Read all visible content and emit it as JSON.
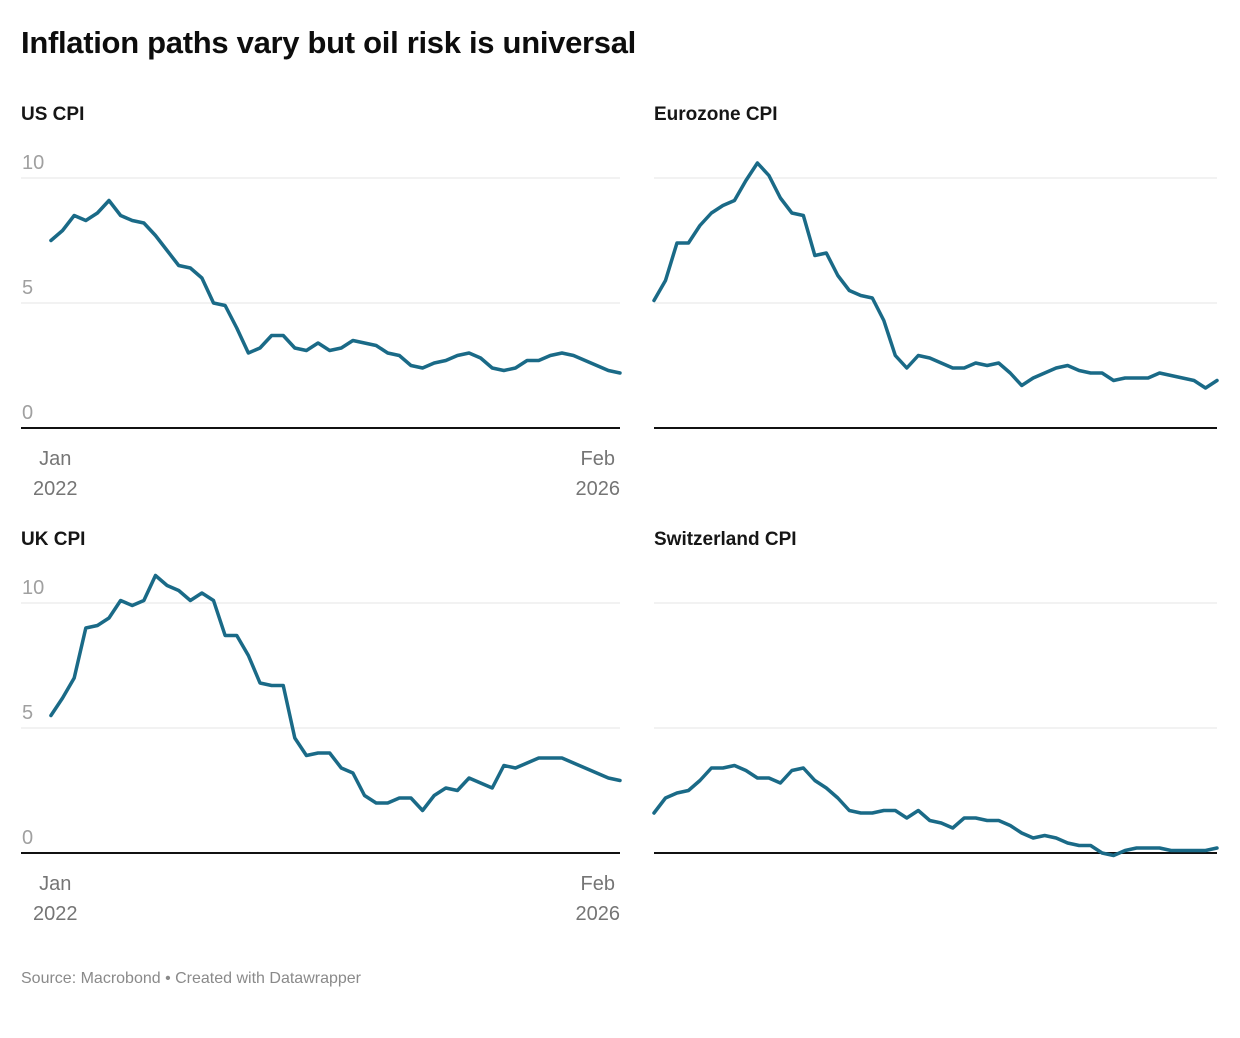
{
  "title": "Inflation paths vary but oil risk is universal",
  "footer": {
    "text": "Source: Macrobond • Created with Datawrapper"
  },
  "colors": {
    "line": "#1a6a87",
    "grid": "#e6e6e6",
    "baseline": "#111111",
    "y_tick_text": "#a0a0a0",
    "x_tick_text": "#757575"
  },
  "axis": {
    "y_ticks": [
      "10",
      "5",
      "0"
    ],
    "x_start": [
      "Jan",
      "2022"
    ],
    "x_end": [
      "Feb",
      "2026"
    ]
  },
  "chart_data": [
    {
      "type": "line",
      "title": "US CPI",
      "x_start": "Jan 2022",
      "x_end": "Feb 2026",
      "ylim": [
        0,
        11.6
      ],
      "y_gridlines": [
        10,
        5,
        0
      ],
      "grid": true,
      "show_y_labels": true,
      "show_x_labels": true,
      "values": [
        7.5,
        7.9,
        8.5,
        8.3,
        8.6,
        9.1,
        8.5,
        8.3,
        8.2,
        7.7,
        7.1,
        6.5,
        6.4,
        6.0,
        5.0,
        4.9,
        4.0,
        3.0,
        3.2,
        3.7,
        3.7,
        3.2,
        3.1,
        3.4,
        3.1,
        3.2,
        3.5,
        3.4,
        3.3,
        3.0,
        2.9,
        2.5,
        2.4,
        2.6,
        2.7,
        2.9,
        3.0,
        2.8,
        2.4,
        2.3,
        2.4,
        2.7,
        2.7,
        2.9,
        3.0,
        2.9,
        2.7,
        2.5,
        2.3,
        2.2
      ]
    },
    {
      "type": "line",
      "title": "Eurozone CPI",
      "x_start": "Jan 2022",
      "x_end": "Feb 2026",
      "ylim": [
        0,
        11.6
      ],
      "y_gridlines": [
        10,
        5,
        0
      ],
      "grid": true,
      "show_y_labels": false,
      "show_x_labels": false,
      "values": [
        5.1,
        5.9,
        7.4,
        7.4,
        8.1,
        8.6,
        8.9,
        9.1,
        9.9,
        10.6,
        10.1,
        9.2,
        8.6,
        8.5,
        6.9,
        7.0,
        6.1,
        5.5,
        5.3,
        5.2,
        4.3,
        2.9,
        2.4,
        2.9,
        2.8,
        2.6,
        2.4,
        2.4,
        2.6,
        2.5,
        2.6,
        2.2,
        1.7,
        2.0,
        2.2,
        2.4,
        2.5,
        2.3,
        2.2,
        2.2,
        1.9,
        2.0,
        2.0,
        2.0,
        2.2,
        2.1,
        2.0,
        1.9,
        1.6,
        1.9
      ]
    },
    {
      "type": "line",
      "title": "UK CPI",
      "x_start": "Jan 2022",
      "x_end": "Feb 2026",
      "ylim": [
        0,
        11.6
      ],
      "y_gridlines": [
        10,
        5,
        0
      ],
      "grid": true,
      "show_y_labels": true,
      "show_x_labels": true,
      "values": [
        5.5,
        6.2,
        7.0,
        9.0,
        9.1,
        9.4,
        10.1,
        9.9,
        10.1,
        11.1,
        10.7,
        10.5,
        10.1,
        10.4,
        10.1,
        8.7,
        8.7,
        7.9,
        6.8,
        6.7,
        6.7,
        4.6,
        3.9,
        4.0,
        4.0,
        3.4,
        3.2,
        2.3,
        2.0,
        2.0,
        2.2,
        2.2,
        1.7,
        2.3,
        2.6,
        2.5,
        3.0,
        2.8,
        2.6,
        3.5,
        3.4,
        3.6,
        3.8,
        3.8,
        3.8,
        3.6,
        3.4,
        3.2,
        3.0,
        2.9
      ]
    },
    {
      "type": "line",
      "title": "Switzerland CPI",
      "x_start": "Jan 2022",
      "x_end": "Feb 2026",
      "ylim": [
        0,
        11.6
      ],
      "y_gridlines": [
        10,
        5,
        0
      ],
      "grid": true,
      "show_y_labels": false,
      "show_x_labels": false,
      "values": [
        1.6,
        2.2,
        2.4,
        2.5,
        2.9,
        3.4,
        3.4,
        3.5,
        3.3,
        3.0,
        3.0,
        2.8,
        3.3,
        3.4,
        2.9,
        2.6,
        2.2,
        1.7,
        1.6,
        1.6,
        1.7,
        1.7,
        1.4,
        1.7,
        1.3,
        1.2,
        1.0,
        1.4,
        1.4,
        1.3,
        1.3,
        1.1,
        0.8,
        0.6,
        0.7,
        0.6,
        0.4,
        0.3,
        0.3,
        0.0,
        -0.1,
        0.1,
        0.2,
        0.2,
        0.2,
        0.1,
        0.1,
        0.1,
        0.1,
        0.2
      ]
    }
  ]
}
